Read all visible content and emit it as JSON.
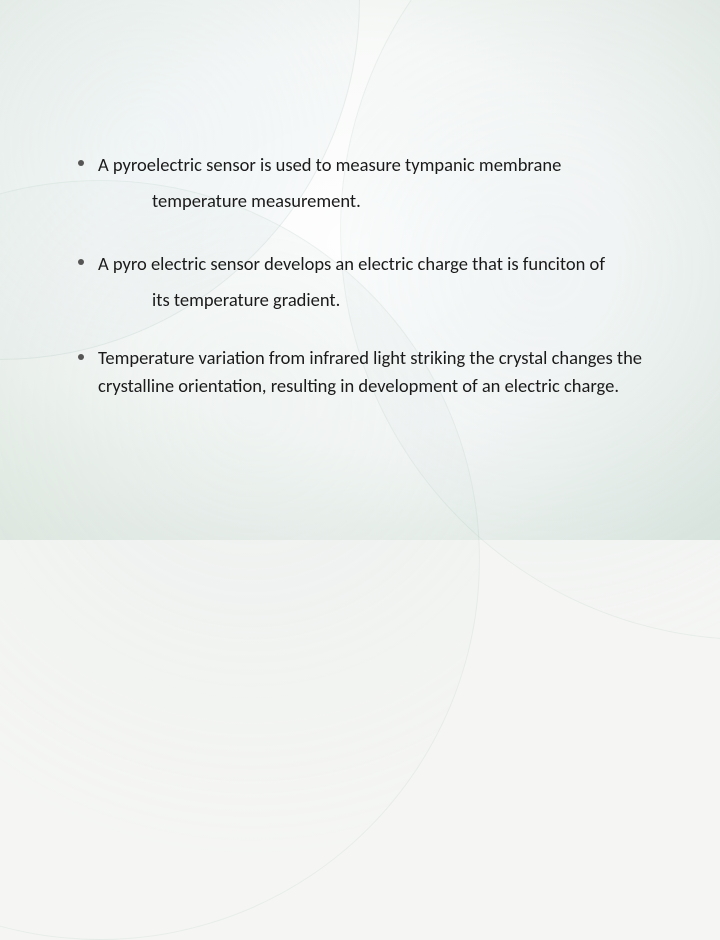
{
  "slide": {
    "bullets": [
      {
        "first": "A pyroelectric sensor is used to measure tympanic membrane",
        "cont": "temperature measurement."
      },
      {
        "first": "A pyro electric sensor develops an electric charge that is funciton of",
        "cont": "its temperature gradient."
      },
      {
        "first": "Temperature variation from infrared light striking the crystal changes the crystalline orientation, resulting in development of an electric charge.",
        "cont": null
      }
    ]
  },
  "style": {
    "text_color": "#1a1a1a",
    "bullet_color": "#555555",
    "font_size_pt": 14,
    "background_base": "#f5f6f4",
    "arc_border": "rgba(140,170,160,0.15)"
  }
}
